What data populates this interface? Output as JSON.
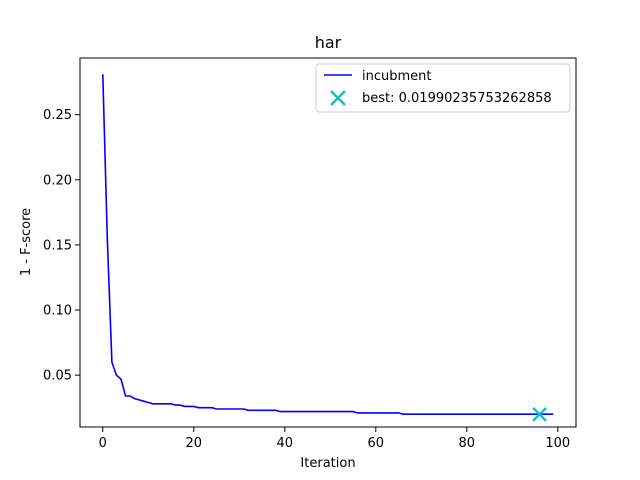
{
  "chart_data": {
    "type": "line",
    "title": "har",
    "xlabel": "Iteration",
    "ylabel": "1 - F-score",
    "xlim": [
      -5,
      104
    ],
    "ylim": [
      0.0102,
      0.2935
    ],
    "xticks": [
      0,
      20,
      40,
      60,
      80,
      100
    ],
    "yticks": [
      0.05,
      0.1,
      0.15,
      0.2,
      0.25
    ],
    "ytick_labels": [
      "0.05",
      "0.10",
      "0.15",
      "0.20",
      "0.25"
    ],
    "grid": false,
    "legend_placement": "upper-right",
    "series": [
      {
        "name": "incubment",
        "color": "#0000ff",
        "x": [
          0,
          1,
          2,
          3,
          4,
          5,
          6,
          7,
          8,
          9,
          10,
          11,
          12,
          13,
          14,
          15,
          16,
          17,
          18,
          19,
          20,
          21,
          22,
          23,
          24,
          25,
          26,
          27,
          28,
          29,
          30,
          31,
          32,
          33,
          34,
          35,
          36,
          37,
          38,
          39,
          40,
          41,
          42,
          43,
          44,
          45,
          46,
          47,
          48,
          49,
          50,
          51,
          52,
          53,
          54,
          55,
          56,
          57,
          58,
          59,
          60,
          61,
          62,
          63,
          64,
          65,
          66,
          67,
          68,
          69,
          70,
          71,
          72,
          73,
          74,
          75,
          76,
          77,
          78,
          79,
          80,
          81,
          82,
          83,
          84,
          85,
          86,
          87,
          88,
          89,
          90,
          91,
          92,
          93,
          94,
          95,
          96,
          97,
          98,
          99
        ],
        "y": [
          0.281,
          0.155,
          0.06,
          0.05,
          0.047,
          0.034,
          0.034,
          0.032,
          0.031,
          0.03,
          0.029,
          0.028,
          0.028,
          0.028,
          0.028,
          0.028,
          0.027,
          0.027,
          0.026,
          0.026,
          0.026,
          0.025,
          0.025,
          0.025,
          0.025,
          0.024,
          0.024,
          0.024,
          0.024,
          0.024,
          0.024,
          0.024,
          0.023,
          0.023,
          0.023,
          0.023,
          0.023,
          0.023,
          0.023,
          0.022,
          0.022,
          0.022,
          0.022,
          0.022,
          0.022,
          0.022,
          0.022,
          0.022,
          0.022,
          0.022,
          0.022,
          0.022,
          0.022,
          0.022,
          0.022,
          0.022,
          0.021,
          0.021,
          0.021,
          0.021,
          0.021,
          0.021,
          0.021,
          0.021,
          0.021,
          0.021,
          0.02,
          0.02,
          0.02,
          0.02,
          0.02,
          0.02,
          0.02,
          0.02,
          0.02,
          0.02,
          0.02,
          0.02,
          0.02,
          0.02,
          0.02,
          0.02,
          0.02,
          0.02,
          0.02,
          0.02,
          0.02,
          0.02,
          0.02,
          0.02,
          0.02,
          0.02,
          0.02,
          0.02,
          0.02,
          0.02,
          0.02,
          0.02,
          0.02,
          0.02
        ]
      },
      {
        "name": "best: 0.01990235753262858",
        "color": "#17bebb",
        "marker": "x",
        "x": [
          96
        ],
        "y": [
          0.01990235753262858
        ]
      }
    ]
  }
}
